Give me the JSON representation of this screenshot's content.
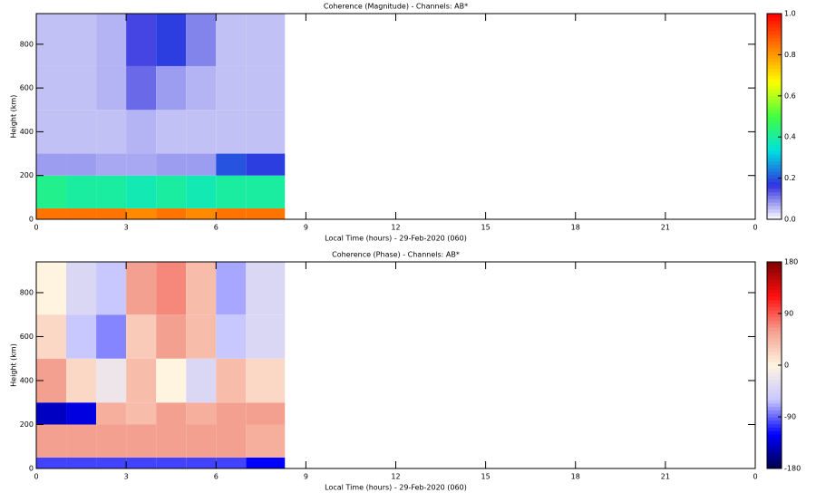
{
  "chart_data": [
    {
      "type": "heatmap",
      "title": "Coherence (Magnitude) - Channels: AB*",
      "x_label": "Local Time (hours) - 29-Feb-2020 (060)",
      "y_label": "Height (km)",
      "xlim": [
        0,
        24
      ],
      "xticks": [
        0,
        3,
        6,
        9,
        12,
        15,
        18,
        21,
        {
          "value": 24,
          "label": "0"
        }
      ],
      "ylim": [
        0,
        940
      ],
      "yticks": [
        0,
        200,
        400,
        600,
        800
      ],
      "x_edges": [
        0,
        1,
        2,
        3,
        4,
        5,
        6,
        7,
        8.3
      ],
      "y_edges": [
        0,
        50,
        200,
        300,
        500,
        700,
        940
      ],
      "z": [
        [
          0.85,
          0.85,
          0.85,
          0.82,
          0.85,
          0.82,
          0.85,
          0.85
        ],
        [
          0.42,
          0.4,
          0.4,
          0.38,
          0.4,
          0.38,
          0.4,
          0.4
        ],
        [
          0.08,
          0.08,
          0.07,
          0.07,
          0.08,
          0.08,
          0.2,
          0.18
        ],
        [
          0.05,
          0.05,
          0.05,
          0.06,
          0.05,
          0.05,
          0.05,
          0.05
        ],
        [
          0.05,
          0.05,
          0.06,
          0.12,
          0.08,
          0.06,
          0.05,
          0.05
        ],
        [
          0.05,
          0.05,
          0.06,
          0.15,
          0.18,
          0.1,
          0.05,
          0.05
        ]
      ],
      "zlim": [
        0,
        1
      ],
      "zticks": [
        {
          "value": 0,
          "label": "0.0"
        },
        {
          "value": 0.2,
          "label": "0.2"
        },
        {
          "value": 0.4,
          "label": "0.4"
        },
        {
          "value": 0.6,
          "label": "0.6"
        },
        {
          "value": 0.8,
          "label": "0.8"
        },
        {
          "value": 1,
          "label": "1.0"
        }
      ],
      "colormap": [
        "#ffffff",
        "#3030e0",
        "#00e0e0",
        "#40ff40",
        "#ffff00",
        "#ff8000",
        "#ff0000"
      ]
    },
    {
      "type": "heatmap",
      "title": "Coherence (Phase) - Channels: AB*",
      "x_label": "Local Time (hours) - 29-Feb-2020 (060)",
      "y_label": "Height (km)",
      "xlim": [
        0,
        24
      ],
      "xticks": [
        0,
        3,
        6,
        9,
        12,
        15,
        18,
        21,
        {
          "value": 24,
          "label": "0"
        }
      ],
      "ylim": [
        0,
        940
      ],
      "yticks": [
        0,
        200,
        400,
        600,
        800
      ],
      "x_edges": [
        0,
        1,
        2,
        3,
        4,
        5,
        6,
        7,
        8.3
      ],
      "y_edges": [
        0,
        50,
        200,
        300,
        500,
        700,
        940
      ],
      "z": [
        [
          -100,
          -100,
          -100,
          -100,
          -100,
          -100,
          -100,
          -120
        ],
        [
          60,
          60,
          60,
          60,
          60,
          60,
          60,
          50
        ],
        [
          -140,
          -130,
          50,
          40,
          60,
          50,
          60,
          60
        ],
        [
          60,
          20,
          -20,
          40,
          0,
          -40,
          40,
          20
        ],
        [
          20,
          -60,
          -80,
          30,
          60,
          40,
          -60,
          -40
        ],
        [
          0,
          -40,
          -60,
          60,
          70,
          40,
          -70,
          -40
        ]
      ],
      "zlim": [
        -180,
        180
      ],
      "zticks": [
        -180,
        -90,
        0,
        90,
        180
      ],
      "colormap": [
        "#00004a",
        "#0000ff",
        "#c8c8ff",
        "#fff4e0",
        "#f4a090",
        "#ff1010",
        "#800000"
      ]
    }
  ]
}
